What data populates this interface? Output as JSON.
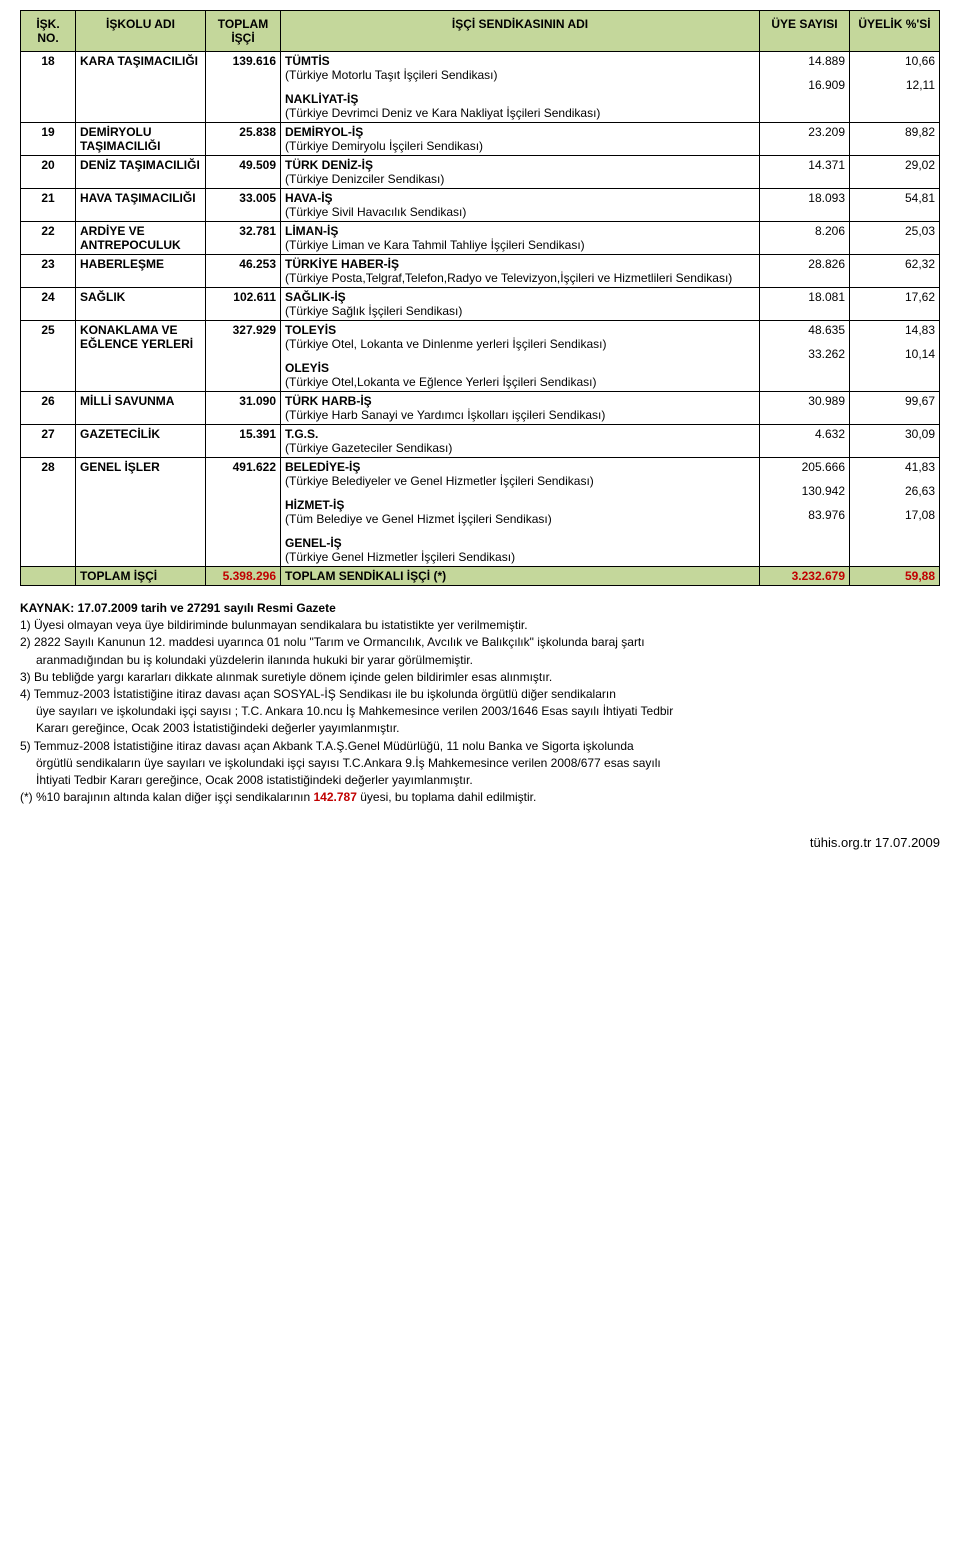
{
  "colors": {
    "header_bg": "#c4d79b",
    "total_row_bg": "#c4d79b",
    "red": "#c00000",
    "border": "#000000",
    "bg": "#ffffff"
  },
  "header": {
    "no": "İŞK. NO.",
    "branch": "İŞKOLU ADI",
    "total": "TOPLAM İŞÇİ",
    "union": "İŞÇİ SENDİKASININ ADI",
    "members": "ÜYE SAYISI",
    "pct": "ÜYELİK %'Sİ"
  },
  "rows": [
    {
      "no": "18",
      "branch": "KARA TAŞIMACILIĞI",
      "total": "139.616",
      "unions": [
        {
          "name": "TÜMTİS",
          "desc": "(Türkiye Motorlu Taşıt İşçileri Sendikası)",
          "members": "14.889",
          "pct": "10,66"
        },
        {
          "name": "NAKLİYAT-İŞ",
          "desc": "(Türkiye Devrimci Deniz ve Kara Nakliyat İşçileri Sendikası)",
          "members": "16.909",
          "pct": "12,11"
        }
      ]
    },
    {
      "no": "19",
      "branch": "DEMİRYOLU TAŞIMACILIĞI",
      "total": "25.838",
      "unions": [
        {
          "name": "DEMİRYOL-İŞ",
          "desc": "(Türkiye Demiryolu İşçileri Sendikası)",
          "members": "23.209",
          "pct": "89,82"
        }
      ]
    },
    {
      "no": "20",
      "branch": "DENİZ TAŞIMACILIĞI",
      "total": "49.509",
      "unions": [
        {
          "name": "TÜRK DENİZ-İŞ",
          "desc": "(Türkiye Denizciler Sendikası)",
          "members": "14.371",
          "pct": "29,02"
        }
      ]
    },
    {
      "no": "21",
      "branch": "HAVA TAŞIMACILIĞI",
      "total": "33.005",
      "unions": [
        {
          "name": "HAVA-İŞ",
          "desc": "(Türkiye Sivil Havacılık Sendikası)",
          "members": "18.093",
          "pct": "54,81"
        }
      ]
    },
    {
      "no": "22",
      "branch": "ARDİYE VE ANTREPOCULUK",
      "total": "32.781",
      "unions": [
        {
          "name": "LİMAN-İŞ",
          "desc": "(Türkiye Liman ve Kara Tahmil Tahliye İşçileri Sendikası)",
          "members": "8.206",
          "pct": "25,03"
        }
      ]
    },
    {
      "no": "23",
      "branch": "HABERLEŞME",
      "total": "46.253",
      "unions": [
        {
          "name": "TÜRKİYE HABER-İŞ",
          "desc": "(Türkiye Posta,Telgraf,Telefon,Radyo ve Televizyon,İşçileri ve Hizmetlileri Sendikası)",
          "members": "28.826",
          "pct": "62,32"
        }
      ]
    },
    {
      "no": "24",
      "branch": "SAĞLIK",
      "total": "102.611",
      "unions": [
        {
          "name": "SAĞLIK-İŞ",
          "desc": "(Türkiye Sağlık İşçileri Sendikası)",
          "members": "18.081",
          "pct": "17,62"
        }
      ]
    },
    {
      "no": "25",
      "branch": "KONAKLAMA VE EĞLENCE YERLERİ",
      "total": "327.929",
      "unions": [
        {
          "name": "TOLEYİS",
          "desc": "(Türkiye Otel, Lokanta ve Dinlenme yerleri İşçileri Sendikası)",
          "members": "48.635",
          "pct": "14,83"
        },
        {
          "name": "OLEYİS",
          "desc": "(Türkiye Otel,Lokanta ve Eğlence Yerleri İşçileri Sendikası)",
          "members": "33.262",
          "pct": "10,14"
        }
      ]
    },
    {
      "no": "26",
      "branch": "MİLLİ SAVUNMA",
      "total": "31.090",
      "unions": [
        {
          "name": "TÜRK HARB-İŞ",
          "desc": "(Türkiye Harb Sanayi ve Yardımcı İşkolları işçileri Sendikası)",
          "members": "30.989",
          "pct": "99,67"
        }
      ]
    },
    {
      "no": "27",
      "branch": "GAZETECİLİK",
      "total": "15.391",
      "unions": [
        {
          "name": "T.G.S.",
          "desc": "(Türkiye Gazeteciler Sendikası)",
          "members": "4.632",
          "pct": "30,09"
        }
      ]
    },
    {
      "no": "28",
      "branch": "GENEL İŞLER",
      "total": "491.622",
      "unions": [
        {
          "name": "BELEDİYE-İŞ",
          "desc": "(Türkiye Belediyeler ve Genel Hizmetler İşçileri Sendikası)",
          "members": "205.666",
          "pct": "41,83"
        },
        {
          "name": "HİZMET-İŞ",
          "desc": "(Tüm Belediye ve Genel Hizmet İşçileri Sendikası)",
          "members": "130.942",
          "pct": "26,63"
        },
        {
          "name": "GENEL-İŞ",
          "desc": "(Türkiye Genel Hizmetler İşçileri Sendikası)",
          "members": "83.976",
          "pct": "17,08"
        }
      ]
    }
  ],
  "totalRow": {
    "branch": "TOPLAM İŞÇİ",
    "total": "5.398.296",
    "union": "TOPLAM SENDİKALI İŞÇİ (*)",
    "members": "3.232.679",
    "pct": "59,88"
  },
  "footnotes": {
    "source": "KAYNAK: 17.07.2009 tarih ve 27291 sayılı Resmi Gazete",
    "f1": "1)  Üyesi olmayan veya üye bildiriminde bulunmayan sendikalara bu istatistikte yer verilmemiştir.",
    "f2a": "2)  2822 Sayılı Kanunun 12. maddesi uyarınca 01 nolu \"Tarım ve Ormancılık, Avcılık ve Balıkçılık\" işkolunda baraj şartı",
    "f2b": "aranmadığından bu iş kolundaki yüzdelerin ilanında hukuki bir yarar görülmemiştir.",
    "f3": "3)  Bu tebliğde yargı kararları dikkate alınmak suretiyle dönem içinde gelen bildirimler esas alınmıştır.",
    "f4a": "4)  Temmuz-2003 İstatistiğine itiraz davası açan SOSYAL-İŞ Sendikası ile bu işkolunda örgütlü diğer sendikaların",
    "f4b": "üye sayıları ve işkolundaki işçi sayısı ; T.C. Ankara 10.ncu İş Mahkemesince verilen 2003/1646 Esas sayılı İhtiyati Tedbir",
    "f4c": "Kararı gereğince, Ocak 2003 İstatistiğindeki değerler yayımlanmıştır.",
    "f5a": "5)  Temmuz-2008 İstatistiğine itiraz davası açan Akbank T.A.Ş.Genel Müdürlüğü, 11 nolu Banka ve Sigorta  işkolunda",
    "f5b": "örgütlü sendikaların üye sayıları ve işkolundaki işçi sayısı T.C.Ankara 9.İş Mahkemesince verilen 2008/677 esas sayılı",
    "f5c": "İhtiyati Tedbir Kararı gereğince, Ocak 2008 istatistiğindeki değerler yayımlanmıştır.",
    "star_a": "(*) %10 barajının altında kalan diğer işçi sendikalarının ",
    "star_red": "142.787",
    "star_b": " üyesi, bu toplama dahil edilmiştir."
  },
  "footer": "tühis.org.tr 17.07.2009"
}
